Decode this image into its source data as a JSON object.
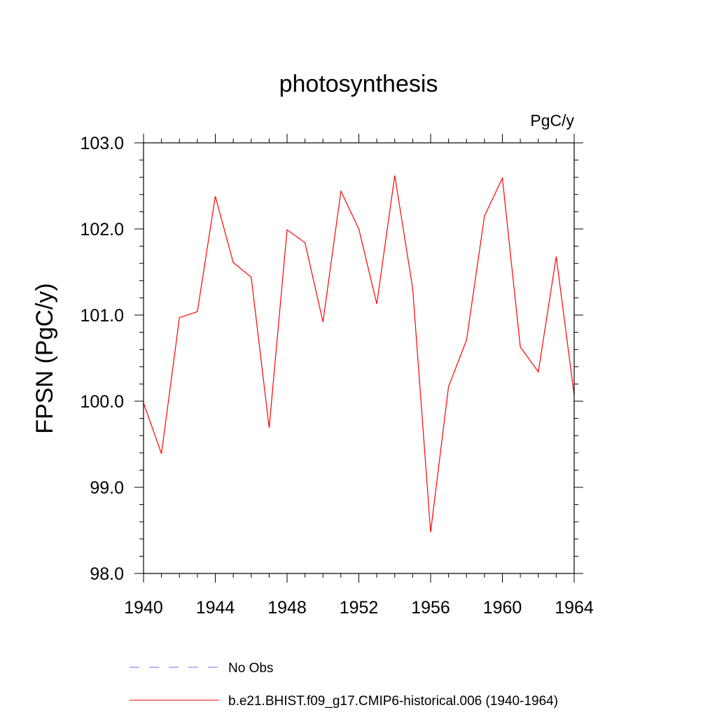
{
  "chart_data": {
    "type": "line",
    "title": "photosynthesis",
    "units_label": "PgC/y",
    "ylabel": "FPSN  (PgC/y)",
    "xlabel": "",
    "xlim": [
      1940,
      1964
    ],
    "ylim": [
      98.0,
      103.0
    ],
    "x_ticks": [
      1940,
      1944,
      1948,
      1952,
      1956,
      1960,
      1964
    ],
    "y_ticks": [
      98.0,
      99.0,
      100.0,
      101.0,
      102.0,
      103.0
    ],
    "y_tick_labels": [
      "98.0",
      "99.0",
      "100.0",
      "101.0",
      "102.0",
      "103.0"
    ],
    "grid": false,
    "legend_placement": "bottom",
    "series": [
      {
        "name": "b.e21.BHIST.f09_g17.CMIP6-historical.006 (1940-1964)",
        "color": "#ff0000",
        "x": [
          1940,
          1941,
          1942,
          1943,
          1944,
          1945,
          1946,
          1947,
          1948,
          1949,
          1950,
          1951,
          1952,
          1953,
          1954,
          1955,
          1956,
          1957,
          1958,
          1959,
          1960,
          1961,
          1962,
          1963,
          1964
        ],
        "values": [
          99.98,
          99.39,
          100.97,
          101.04,
          102.38,
          101.61,
          101.44,
          99.69,
          101.99,
          101.84,
          100.92,
          102.44,
          102.0,
          101.13,
          102.62,
          101.31,
          98.48,
          100.17,
          100.71,
          102.15,
          102.59,
          100.63,
          100.34,
          101.68,
          100.07
        ]
      }
    ],
    "legend": [
      {
        "label": "No Obs",
        "color": "#6e6ef0",
        "style": "dashed"
      },
      {
        "label": "b.e21.BHIST.f09_g17.CMIP6-historical.006 (1940-1964)",
        "color": "#ff0000",
        "style": "solid"
      }
    ]
  }
}
